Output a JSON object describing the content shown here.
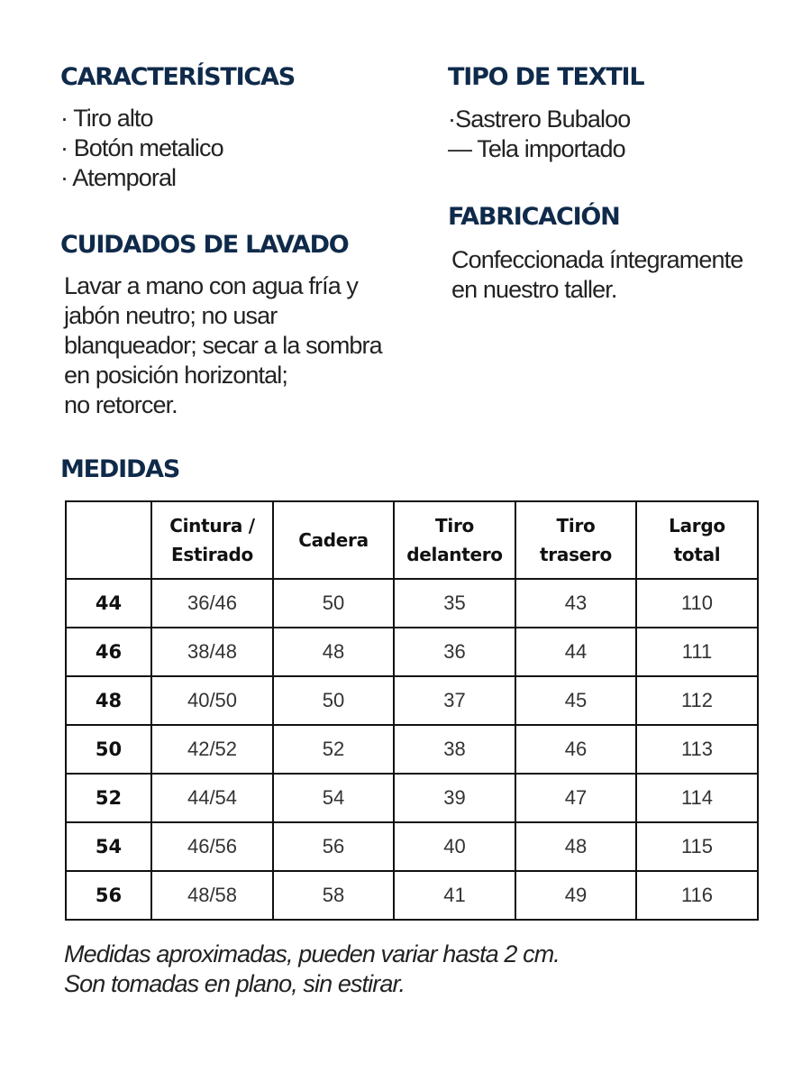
{
  "caracteristicas": {
    "title": "CARACTERÍSTICAS",
    "items": [
      "· Tiro alto",
      "· Botón metalico",
      "· Atemporal"
    ]
  },
  "cuidados": {
    "title": "CUIDADOS DE LAVADO",
    "lines": [
      "Lavar a mano con agua fría y",
      "jabón neutro; no usar",
      "blanqueador; secar a la sombra",
      "en posición horizontal;",
      "no retorcer."
    ]
  },
  "textil": {
    "title": "TIPO DE TEXTIL",
    "items": [
      "·Sastrero Bubaloo",
      "— Tela importado"
    ]
  },
  "fabricacion": {
    "title": "FABRICACIÓN",
    "lines": [
      "Confeccionada íntegramente",
      "en nuestro taller."
    ]
  },
  "medidas": {
    "title": "MEDIDAS",
    "headers": [
      "",
      "Cintura /\nEstirado",
      "Cadera",
      "Tiro\ndelantero",
      "Tiro\ntrasero",
      "Largo\ntotal"
    ],
    "rows": [
      [
        "44",
        "36/46",
        "50",
        "35",
        "43",
        "110"
      ],
      [
        "46",
        "38/48",
        "48",
        "36",
        "44",
        "111"
      ],
      [
        "48",
        "40/50",
        "50",
        "37",
        "45",
        "112"
      ],
      [
        "50",
        "42/52",
        "52",
        "38",
        "46",
        "113"
      ],
      [
        "52",
        "44/54",
        "54",
        "39",
        "47",
        "114"
      ],
      [
        "54",
        "46/56",
        "56",
        "40",
        "48",
        "115"
      ],
      [
        "56",
        "48/58",
        "58",
        "41",
        "49",
        "116"
      ]
    ],
    "notes": [
      "Medidas aproximadas, pueden variar hasta 2 cm.",
      "Son tomadas en plano, sin estirar."
    ]
  }
}
